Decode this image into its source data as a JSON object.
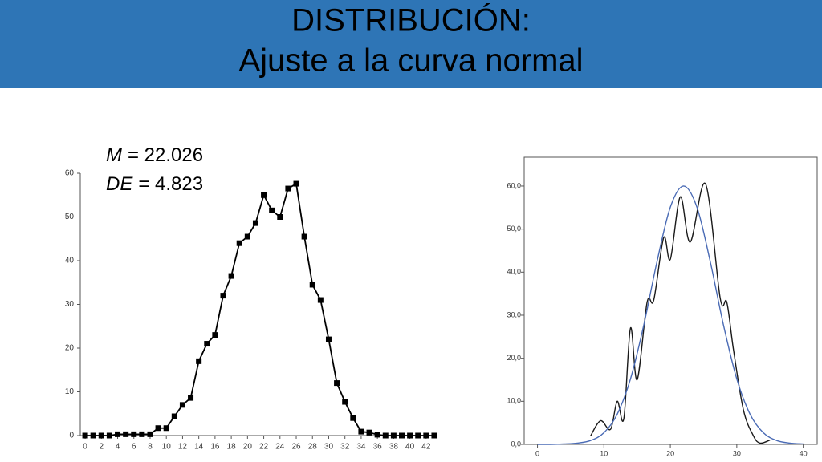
{
  "header": {
    "title": [
      "DISTRIBUCIÓN:",
      "Ajuste a la curva normal"
    ]
  },
  "chart_data": [
    {
      "type": "line",
      "markers": "square",
      "smooth": false,
      "frame": false,
      "annotations": [
        {
          "symbol": "M",
          "text": "= 22.026"
        },
        {
          "symbol": "DE",
          "text": "= 4.823"
        }
      ],
      "x": [
        0,
        1,
        2,
        3,
        4,
        5,
        6,
        7,
        8,
        9,
        10,
        11,
        12,
        13,
        14,
        15,
        16,
        17,
        18,
        19,
        20,
        21,
        22,
        23,
        24,
        25,
        26,
        27,
        28,
        29,
        30,
        31,
        32,
        33,
        34,
        35,
        36,
        37,
        38,
        39,
        40,
        41,
        42,
        43
      ],
      "values": [
        0,
        0,
        0,
        0,
        0.3,
        0.3,
        0.3,
        0.3,
        0.3,
        1.7,
        1.7,
        4.4,
        7,
        8.6,
        17,
        21,
        23,
        32,
        36.5,
        44,
        45.5,
        48.6,
        55,
        51.5,
        50,
        56.5,
        57.6,
        45.5,
        34.5,
        31,
        22,
        12,
        7.7,
        4,
        0.9,
        0.7,
        0.2,
        0,
        0,
        0,
        0,
        0,
        0,
        0
      ],
      "color": "#000000",
      "xlim": [
        -0.6,
        43.4
      ],
      "xticks": [
        0,
        2,
        4,
        6,
        8,
        10,
        12,
        14,
        16,
        18,
        20,
        22,
        24,
        26,
        28,
        30,
        32,
        34,
        36,
        38,
        40,
        42
      ],
      "ylim": [
        0,
        60
      ],
      "yticks": [
        0,
        10,
        20,
        30,
        40,
        50,
        60
      ]
    },
    {
      "type": "line",
      "smooth": true,
      "frame": true,
      "series": [
        {
          "color": "#1a1a1a",
          "x": [
            8,
            9.5,
            11,
            12,
            13,
            14,
            15,
            16.5,
            17.5,
            19,
            20,
            21.5,
            23,
            25.3,
            27.5,
            28.5,
            29.5,
            31,
            32.5,
            33.5,
            35
          ],
          "values": [
            2,
            5.5,
            3.5,
            10,
            6,
            27,
            15,
            33,
            33.5,
            48,
            43,
            57.5,
            47,
            60.5,
            34,
            33,
            22,
            8,
            2,
            0.3,
            1
          ]
        },
        {
          "color": "#4a6bb5",
          "x": [
            0,
            2,
            4,
            6,
            8,
            10,
            12,
            14,
            16,
            18,
            20,
            22,
            24,
            26,
            28,
            30,
            32,
            34,
            36,
            38,
            40
          ],
          "values": [
            0,
            0,
            0.1,
            0.3,
            0.9,
            2.7,
            7,
            15.2,
            27.7,
            42.5,
            55.1,
            60,
            55.1,
            42.5,
            27.7,
            15.2,
            7,
            2.7,
            0.9,
            0.3,
            0.1
          ]
        }
      ],
      "xlim": [
        -2,
        42.1
      ],
      "xticks": [
        0,
        10,
        20,
        30,
        40
      ],
      "ylim": [
        0,
        66.7
      ],
      "yticks": [
        {
          "value": 0,
          "label": "0,0"
        },
        {
          "value": 10,
          "label": "10,0"
        },
        {
          "value": 20,
          "label": "20,0"
        },
        {
          "value": 30,
          "label": "30,0"
        },
        {
          "value": 40,
          "label": "40,0"
        },
        {
          "value": 50,
          "label": "50,0"
        },
        {
          "value": 60,
          "label": "60,0"
        }
      ]
    }
  ]
}
